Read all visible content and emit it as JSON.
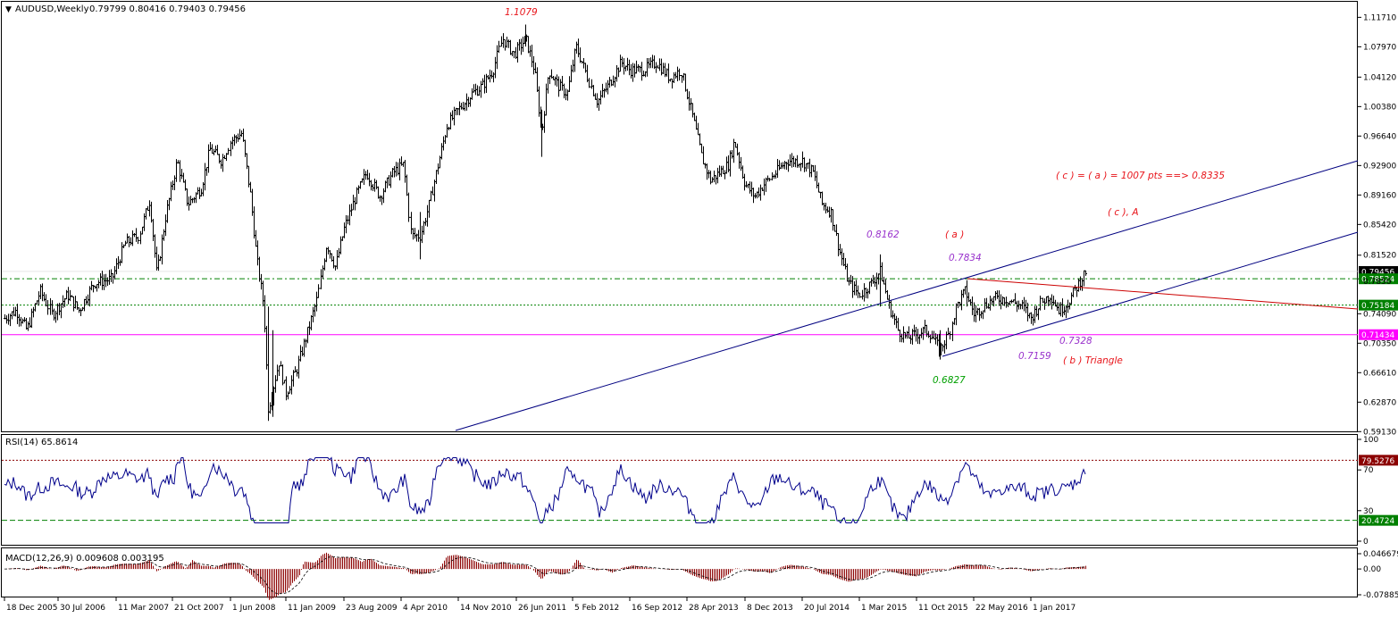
{
  "colors": {
    "candle": "#000000",
    "channel": "#000080",
    "triangle": "#cc0000",
    "magenta_line": "#ff00ff",
    "green_dash": "#008000",
    "rsi_line": "#00008b",
    "rsi_upper": "#8b0000",
    "macd_hist": "#8b0000",
    "annot_red": "#e8141a",
    "annot_purple": "#9932cc",
    "annot_green": "#00a000",
    "badge_black": "#000000",
    "badge_green": "#008000",
    "badge_magenta": "#ff00ff",
    "badge_rsi_red": "#8b0000"
  },
  "header": {
    "symbol_text": "AUDUSD,Weekly",
    "ohlc_text": "0.79799 0.80416 0.79403 0.79456"
  },
  "rsi": {
    "label": "RSI(14) 65.8614"
  },
  "macd": {
    "label": "MACD(12,26,9) 0.009608 0.003195"
  },
  "chart_data": [
    {
      "type": "candlestick",
      "title": "AUDUSD,Weekly",
      "y_range": [
        0.5905,
        1.1368
      ],
      "y_ticks": [
        "1.11710",
        "1.07970",
        "1.04120",
        "1.00380",
        "0.96640",
        "0.92900",
        "0.89160",
        "0.85420",
        "0.81520",
        "0.78520",
        "0.74090",
        "0.70350",
        "0.66610",
        "0.62870",
        "0.59130"
      ],
      "x_ticks": [
        "18 Dec 2005",
        "30 Jul 2006",
        "11 Mar 2007",
        "21 Oct 2007",
        "1 Jun 2008",
        "11 Jan 2009",
        "23 Aug 2009",
        "4 Apr 2010",
        "14 Nov 2010",
        "26 Jun 2011",
        "5 Feb 2012",
        "16 Sep 2012",
        "28 Apr 2013",
        "8 Dec 2013",
        "20 Jul 2014",
        "1 Mar 2015",
        "11 Oct 2015",
        "22 May 2016",
        "1 Jan 2017"
      ],
      "close_path": [
        [
          "18 Dec 2005",
          0.735
        ],
        [
          "30 Jul 2006",
          0.765
        ],
        [
          "11 Mar 2007",
          0.83
        ],
        [
          "21 Oct 2007",
          0.9
        ],
        [
          "1 Jun 2008",
          0.96
        ],
        [
          "11 Jan 2009",
          0.64
        ],
        [
          "23 Aug 2009",
          0.85
        ],
        [
          "4 Apr 2010",
          0.92
        ],
        [
          "14 Nov 2010",
          1.0
        ],
        [
          "26 Jun 2011",
          1.07
        ],
        [
          "5 Feb 2012",
          1.06
        ],
        [
          "16 Sep 2012",
          1.04
        ],
        [
          "28 Apr 2013",
          1.02
        ],
        [
          "8 Dec 2013",
          0.89
        ],
        [
          "20 Jul 2014",
          0.935
        ],
        [
          "1 Mar 2015",
          0.78
        ],
        [
          "11 Oct 2015",
          0.715
        ],
        [
          "22 May 2016",
          0.745
        ],
        [
          "1 Jan 2017",
          0.745
        ]
      ],
      "price_badges": [
        {
          "value": "0.79456",
          "kind": "current"
        },
        {
          "value": "0.78524",
          "kind": "level"
        },
        {
          "value": "0.75184",
          "kind": "level"
        },
        {
          "value": "0.71434",
          "kind": "level"
        }
      ],
      "hidden_label": "0.7850",
      "annotations": [
        {
          "text": "1.1079",
          "color": "red"
        },
        {
          "text": "( c ) = ( a ) = 1007 pts  ==>  0.8335",
          "color": "red"
        },
        {
          "text": "( c ), A",
          "color": "red"
        },
        {
          "text": "0.8162",
          "color": "purple"
        },
        {
          "text": "( a )",
          "color": "red"
        },
        {
          "text": "0.7834",
          "color": "purple"
        },
        {
          "text": "0.7328",
          "color": "purple"
        },
        {
          "text": "0.7159",
          "color": "purple"
        },
        {
          "text": "( b )   Triangle",
          "color": "red"
        },
        {
          "text": "0.6827",
          "color": "green"
        }
      ]
    },
    {
      "type": "line",
      "title": "RSI(14) 65.8614",
      "y_range": [
        0,
        100
      ],
      "y_ticks": [
        "100",
        "70",
        "30",
        "0"
      ],
      "levels": [
        {
          "value": "79.5276",
          "kind": "upper"
        },
        {
          "value": "20.4724",
          "kind": "lower"
        }
      ],
      "last_value": 65.8614
    },
    {
      "type": "bar",
      "title": "MACD(12,26,9) 0.009608 0.003195",
      "y_ticks": [
        "0.046679",
        "0.00",
        "-0.078852"
      ],
      "macd": 0.009608,
      "signal": 0.003195
    }
  ]
}
